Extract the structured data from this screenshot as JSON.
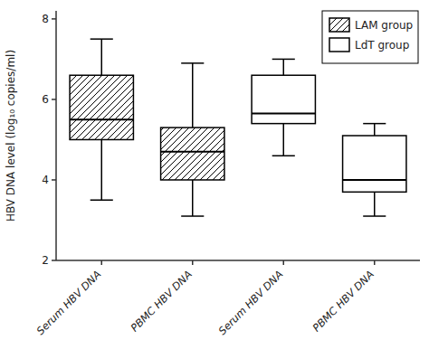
{
  "chart_data": {
    "type": "box",
    "categories": [
      "Serum HBV DNA",
      "PBMC HBV DNA",
      "Serum HBV DNA",
      "PBMC HBV DNA"
    ],
    "y_label": "HBV DNA level (log₁₀ copies/ml)",
    "series": [
      {
        "name": "LAM group",
        "color": "black",
        "whisker_low": [
          3.5,
          3.1,
          null,
          null
        ],
        "q1": [
          5.0,
          4.0,
          null,
          null
        ],
        "median": [
          5.5,
          4.7,
          null,
          null
        ],
        "q3": [
          6.6,
          5.3,
          null,
          null
        ],
        "whisker_high": [
          7.5,
          6.9,
          null,
          null
        ]
      },
      {
        "name": "LdT group",
        "color": "black",
        "whisker_low": [
          null,
          null,
          4.6,
          3.1
        ],
        "q1": [
          null,
          null,
          5.4,
          3.7
        ],
        "median": [
          null,
          null,
          5.65,
          4.0
        ],
        "q3": [
          null,
          null,
          6.6,
          5.1
        ],
        "whisker_high": [
          null,
          null,
          7.0,
          5.4
        ]
      }
    ],
    "ylim": [
      2.0,
      8.2
    ],
    "yticks": [
      2,
      4,
      6,
      8
    ],
    "legend": "upper right"
  }
}
